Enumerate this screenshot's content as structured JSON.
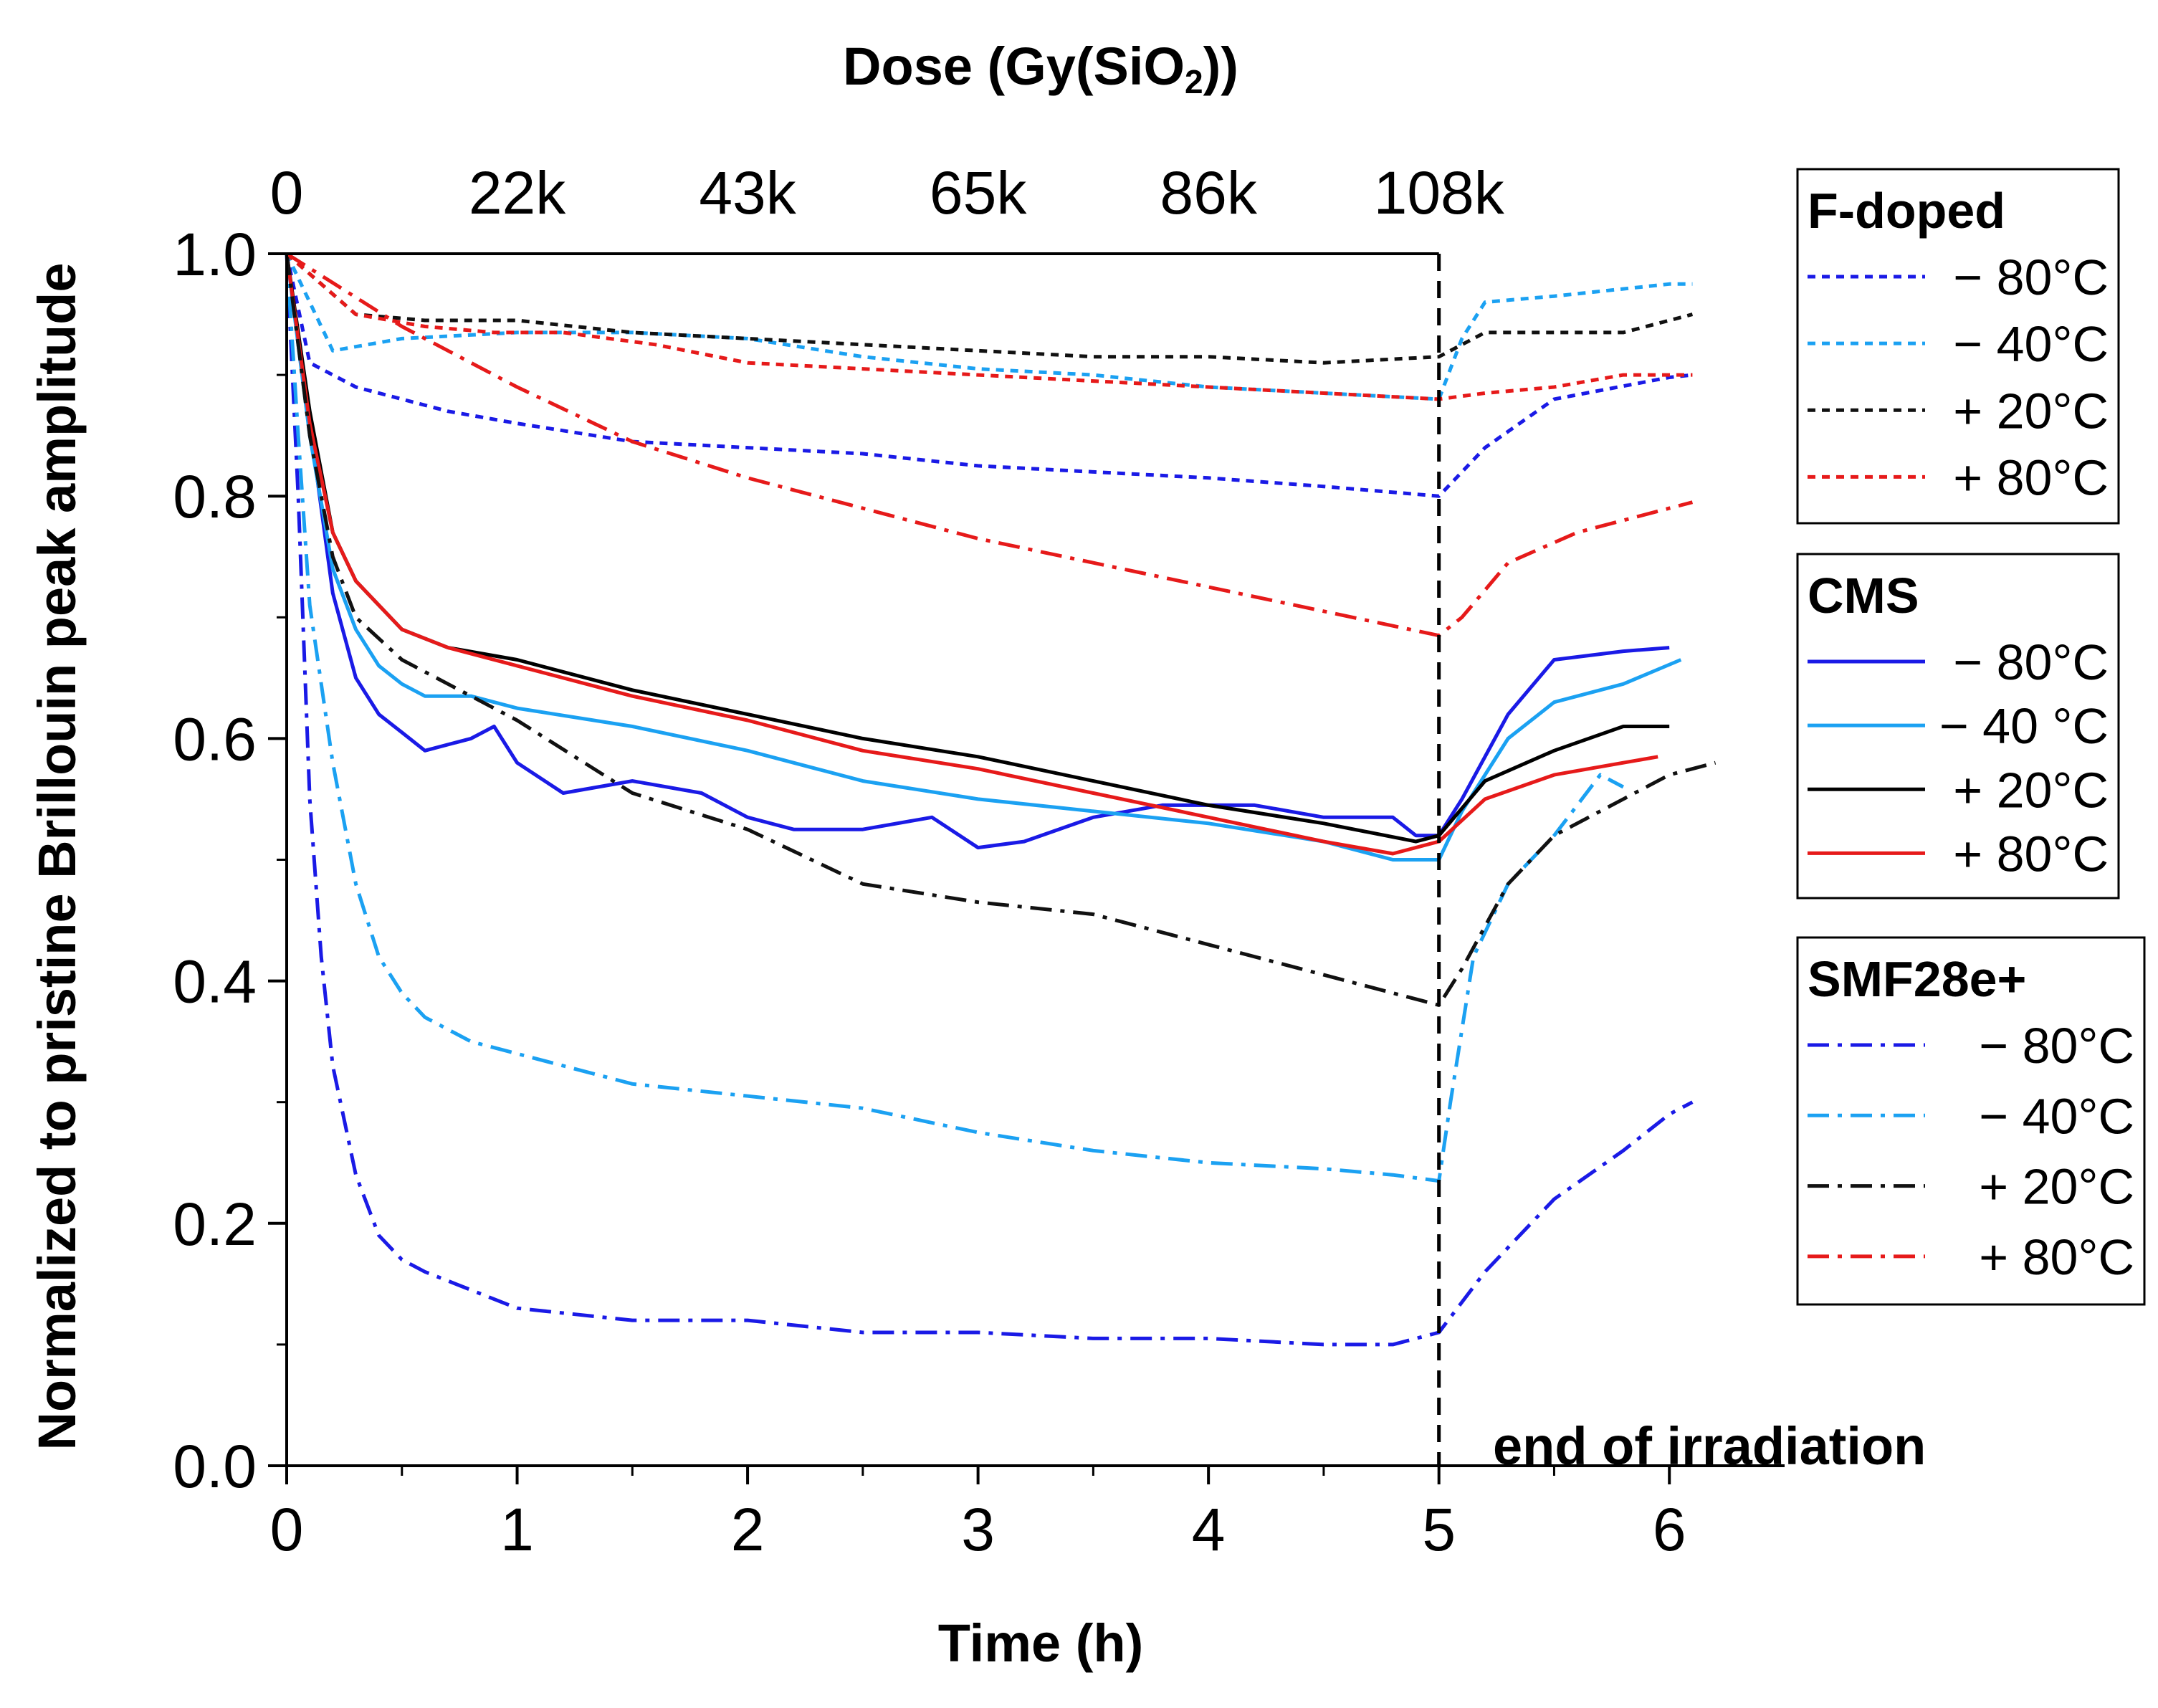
{
  "chart_data": {
    "type": "line",
    "xlabel": "Time (h)",
    "ylabel": "Normalized to pristine Brillouin peak amplitude",
    "top_axis_label": "Dose (Gy(SiO",
    "top_axis_label_sub": "2",
    "top_axis_label_end": "))",
    "xlim": [
      0,
      6.5
    ],
    "ylim": [
      0,
      1.0
    ],
    "x_ticks": [
      0,
      1,
      2,
      3,
      4,
      5,
      6
    ],
    "y_ticks": [
      0.0,
      0.2,
      0.4,
      0.6,
      0.8,
      1.0
    ],
    "y_tick_labels": [
      "0.0",
      "0.2",
      "0.4",
      "0.6",
      "0.8",
      "1.0"
    ],
    "top_ticks": [
      {
        "x": 0,
        "label": "0"
      },
      {
        "x": 1,
        "label": "22k"
      },
      {
        "x": 2,
        "label": "43k"
      },
      {
        "x": 3,
        "label": "65k"
      },
      {
        "x": 4,
        "label": "86k"
      },
      {
        "x": 5,
        "label": "108k"
      }
    ],
    "annotation": {
      "text": "end of irradiation",
      "x": 5
    },
    "grid": false,
    "legend_position": "right",
    "legend_groups": [
      {
        "title": "F-doped",
        "style": "dotted",
        "series": [
          {
            "name": "− 80°C",
            "color": "#1a1ae6",
            "x": [
              0,
              0.1,
              0.3,
              0.5,
              0.7,
              1,
              1.5,
              2,
              2.5,
              3,
              3.5,
              4,
              4.5,
              5,
              5.2,
              5.5,
              6,
              6.1
            ],
            "y": [
              1.0,
              0.91,
              0.89,
              0.88,
              0.87,
              0.86,
              0.845,
              0.84,
              0.835,
              0.825,
              0.82,
              0.815,
              0.808,
              0.8,
              0.84,
              0.88,
              0.898,
              0.9
            ]
          },
          {
            "name": "− 40°C",
            "color": "#1ba1f2",
            "x": [
              0,
              0.2,
              0.5,
              1,
              1.5,
              2,
              2.5,
              3,
              3.5,
              4,
              4.5,
              5,
              5.1,
              5.2,
              5.5,
              6,
              6.1
            ],
            "y": [
              1.0,
              0.92,
              0.93,
              0.935,
              0.935,
              0.93,
              0.915,
              0.905,
              0.9,
              0.89,
              0.885,
              0.88,
              0.93,
              0.96,
              0.965,
              0.975,
              0.975
            ]
          },
          {
            "name": "+ 20°C",
            "color": "#111111",
            "x": [
              0,
              0.3,
              0.6,
              1,
              1.5,
              2,
              2.5,
              3,
              3.5,
              4,
              4.5,
              5,
              5.2,
              5.5,
              5.8,
              6.1
            ],
            "y": [
              1.0,
              0.95,
              0.945,
              0.945,
              0.935,
              0.93,
              0.925,
              0.92,
              0.915,
              0.915,
              0.91,
              0.915,
              0.935,
              0.935,
              0.935,
              0.95
            ]
          },
          {
            "name": "+ 80°C",
            "color": "#e61a1a",
            "x": [
              0,
              0.3,
              0.6,
              0.9,
              1.2,
              1.6,
              2,
              2.5,
              3,
              3.5,
              4,
              4.5,
              5,
              5.2,
              5.5,
              5.8,
              6.1
            ],
            "y": [
              1.0,
              0.95,
              0.94,
              0.935,
              0.935,
              0.925,
              0.91,
              0.905,
              0.9,
              0.895,
              0.89,
              0.885,
              0.88,
              0.885,
              0.89,
              0.9,
              0.9
            ]
          }
        ]
      },
      {
        "title": "CMS",
        "style": "solid",
        "series": [
          {
            "name": "− 80°C",
            "color": "#1a1ae6",
            "x": [
              0,
              0.1,
              0.2,
              0.3,
              0.4,
              0.5,
              0.6,
              0.8,
              0.9,
              1,
              1.2,
              1.5,
              1.8,
              2,
              2.2,
              2.5,
              2.8,
              3,
              3.2,
              3.5,
              3.8,
              4,
              4.2,
              4.5,
              4.8,
              4.9,
              5,
              5.1,
              5.3,
              5.5,
              5.8,
              6
            ],
            "y": [
              1.0,
              0.86,
              0.72,
              0.65,
              0.62,
              0.605,
              0.59,
              0.6,
              0.61,
              0.58,
              0.555,
              0.565,
              0.555,
              0.535,
              0.525,
              0.525,
              0.535,
              0.51,
              0.515,
              0.535,
              0.545,
              0.545,
              0.545,
              0.535,
              0.535,
              0.52,
              0.52,
              0.55,
              0.62,
              0.665,
              0.672,
              0.675
            ]
          },
          {
            "name": "− 40 °C",
            "color": "#1ba1f2",
            "x": [
              0,
              0.1,
              0.2,
              0.3,
              0.4,
              0.5,
              0.6,
              0.8,
              1,
              1.5,
              2,
              2.5,
              3,
              3.5,
              4,
              4.5,
              4.8,
              5,
              5.1,
              5.3,
              5.5,
              5.8,
              6.05
            ],
            "y": [
              1.0,
              0.85,
              0.74,
              0.69,
              0.66,
              0.645,
              0.635,
              0.635,
              0.625,
              0.61,
              0.59,
              0.565,
              0.55,
              0.54,
              0.53,
              0.515,
              0.5,
              0.5,
              0.54,
              0.6,
              0.63,
              0.645,
              0.665
            ]
          },
          {
            "name": "+ 20°C",
            "color": "#000000",
            "x": [
              0,
              0.1,
              0.2,
              0.3,
              0.5,
              0.7,
              1,
              1.5,
              2,
              2.5,
              3,
              3.5,
              4,
              4.5,
              4.9,
              5,
              5.2,
              5.5,
              5.8,
              6
            ],
            "y": [
              1.0,
              0.87,
              0.77,
              0.73,
              0.69,
              0.675,
              0.665,
              0.64,
              0.62,
              0.6,
              0.585,
              0.565,
              0.545,
              0.53,
              0.515,
              0.52,
              0.565,
              0.59,
              0.61,
              0.61
            ]
          },
          {
            "name": "+ 80°C",
            "color": "#e61a1a",
            "x": [
              0,
              0.1,
              0.2,
              0.3,
              0.5,
              0.7,
              1,
              1.5,
              2,
              2.5,
              3,
              3.5,
              4,
              4.5,
              4.8,
              5,
              5.2,
              5.5,
              5.8,
              5.95
            ],
            "y": [
              1.0,
              0.86,
              0.77,
              0.73,
              0.69,
              0.675,
              0.66,
              0.635,
              0.615,
              0.59,
              0.575,
              0.555,
              0.535,
              0.515,
              0.505,
              0.515,
              0.55,
              0.57,
              0.58,
              0.585
            ]
          }
        ]
      },
      {
        "title": "SMF28e+",
        "style": "dashdot",
        "series": [
          {
            "name": "− 80°C",
            "color": "#1a1ae6",
            "x": [
              0,
              0.05,
              0.1,
              0.15,
              0.2,
              0.3,
              0.4,
              0.5,
              0.6,
              0.8,
              1,
              1.5,
              2,
              2.5,
              3,
              3.5,
              4,
              4.5,
              4.8,
              5,
              5.2,
              5.5,
              5.8,
              6,
              6.1
            ],
            "y": [
              1.0,
              0.8,
              0.55,
              0.42,
              0.33,
              0.24,
              0.19,
              0.17,
              0.16,
              0.145,
              0.13,
              0.12,
              0.12,
              0.11,
              0.11,
              0.105,
              0.105,
              0.1,
              0.1,
              0.11,
              0.16,
              0.22,
              0.26,
              0.29,
              0.3
            ]
          },
          {
            "name": "− 40°C",
            "color": "#1ba1f2",
            "x": [
              0,
              0.05,
              0.1,
              0.2,
              0.3,
              0.4,
              0.5,
              0.6,
              0.8,
              1,
              1.5,
              2,
              2.5,
              3,
              3.5,
              4,
              4.5,
              4.8,
              5,
              5.05,
              5.15,
              5.3,
              5.5,
              5.7,
              5.8
            ],
            "y": [
              1.0,
              0.85,
              0.71,
              0.58,
              0.48,
              0.42,
              0.39,
              0.37,
              0.35,
              0.34,
              0.315,
              0.305,
              0.295,
              0.275,
              0.26,
              0.25,
              0.245,
              0.24,
              0.235,
              0.3,
              0.42,
              0.48,
              0.52,
              0.57,
              0.56
            ]
          },
          {
            "name": "+ 20°C",
            "color": "#111111",
            "x": [
              0,
              0.1,
              0.2,
              0.3,
              0.5,
              0.7,
              1,
              1.5,
              2,
              2.5,
              3,
              3.5,
              4,
              4.5,
              4.8,
              5,
              5.1,
              5.3,
              5.5,
              5.8,
              6,
              6.2
            ],
            "y": [
              1.0,
              0.85,
              0.75,
              0.7,
              0.665,
              0.645,
              0.615,
              0.555,
              0.525,
              0.48,
              0.465,
              0.455,
              0.43,
              0.405,
              0.39,
              0.38,
              0.41,
              0.48,
              0.52,
              0.55,
              0.57,
              0.58
            ]
          },
          {
            "name": "+ 80°C",
            "color": "#e61a1a",
            "x": [
              0,
              0.5,
              1,
              1.5,
              2,
              2.5,
              3,
              3.5,
              4,
              4.5,
              5,
              5.1,
              5.3,
              5.6,
              6,
              6.1
            ],
            "y": [
              1.0,
              0.94,
              0.89,
              0.845,
              0.815,
              0.79,
              0.765,
              0.745,
              0.725,
              0.705,
              0.685,
              0.7,
              0.745,
              0.77,
              0.79,
              0.795
            ]
          }
        ]
      }
    ]
  }
}
